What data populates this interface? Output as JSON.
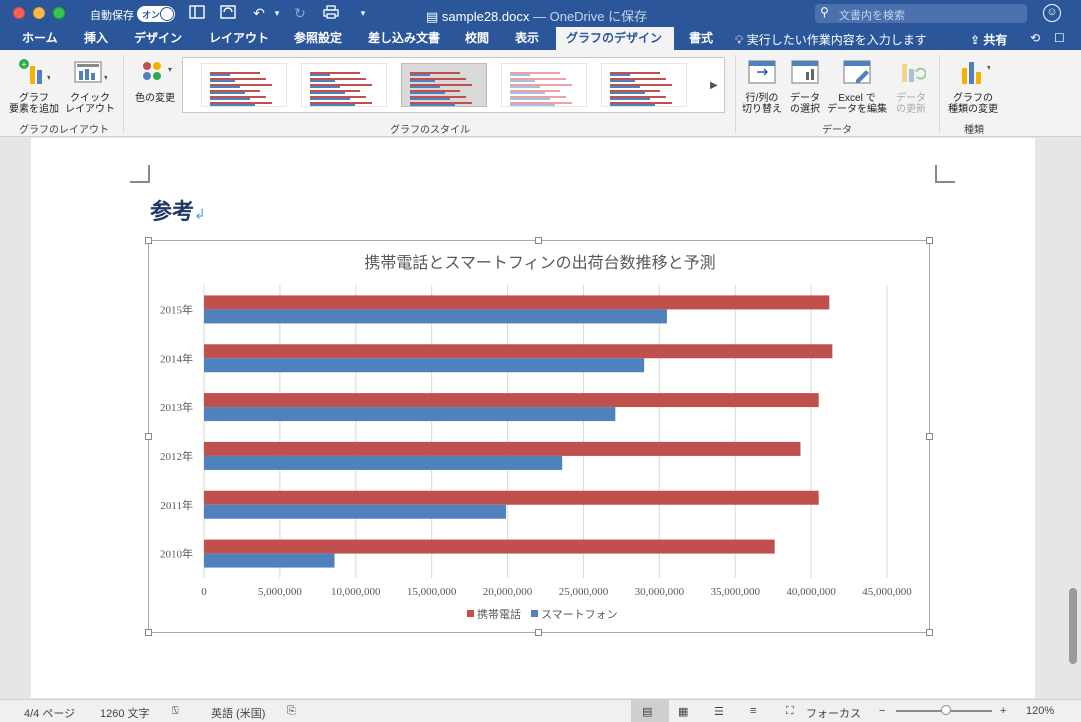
{
  "window": {
    "autosave_label": "自動保存",
    "autosave_state": "オン",
    "doc_name": "sample28.docx",
    "doc_location": " — OneDrive に保存",
    "search_placeholder": "文書内を検索"
  },
  "tabs": [
    "ホーム",
    "挿入",
    "デザイン",
    "レイアウト",
    "参照設定",
    "差し込み文書",
    "校閲",
    "表示",
    "グラフのデザイン",
    "書式"
  ],
  "active_tab": "グラフのデザイン",
  "tell_me": "実行したい作業内容を入力します",
  "share_label": "共有",
  "ribbon": {
    "add_element": [
      "グラフ",
      "要素を追加"
    ],
    "quick_layout": [
      "クイック",
      "レイアウト"
    ],
    "group_layout": "グラフのレイアウト",
    "change_colors": "色の変更",
    "group_styles": "グラフのスタイル",
    "switch_row_col": [
      "行/列の",
      "切り替え"
    ],
    "select_data": [
      "データ",
      "の選択"
    ],
    "edit_excel": [
      "Excel で",
      "データを編集"
    ],
    "refresh_data": [
      "データ",
      "の更新"
    ],
    "group_data": "データ",
    "change_type": [
      "グラフの",
      "種類の変更"
    ],
    "group_type": "種類"
  },
  "document": {
    "heading": "参考",
    "return_mark": "↲"
  },
  "chart_data": {
    "type": "bar",
    "orientation": "horizontal",
    "title": "携帯電話とスマートフィンの出荷台数推移と予測",
    "categories": [
      "2015年",
      "2014年",
      "2013年",
      "2012年",
      "2011年",
      "2010年"
    ],
    "series": [
      {
        "name": "携帯電話",
        "color": "#c0504d",
        "values": [
          41200000,
          41400000,
          40500000,
          39300000,
          40500000,
          37600000
        ]
      },
      {
        "name": "スマートフォン",
        "color": "#4f81bd",
        "values": [
          30500000,
          29000000,
          27100000,
          23600000,
          19900000,
          8600000
        ]
      }
    ],
    "x_ticks": [
      "0",
      "5,000,000",
      "10,000,000",
      "15,000,000",
      "20,000,000",
      "25,000,000",
      "30,000,000",
      "35,000,000",
      "40,000,000",
      "45,000,000"
    ],
    "xlim": [
      0,
      45000000
    ],
    "grid": true,
    "legend_position": "bottom"
  },
  "status": {
    "page": "4/4 ページ",
    "words": "1260 文字",
    "language": "英語 (米国)",
    "focus": "フォーカス",
    "zoom": "120%"
  }
}
